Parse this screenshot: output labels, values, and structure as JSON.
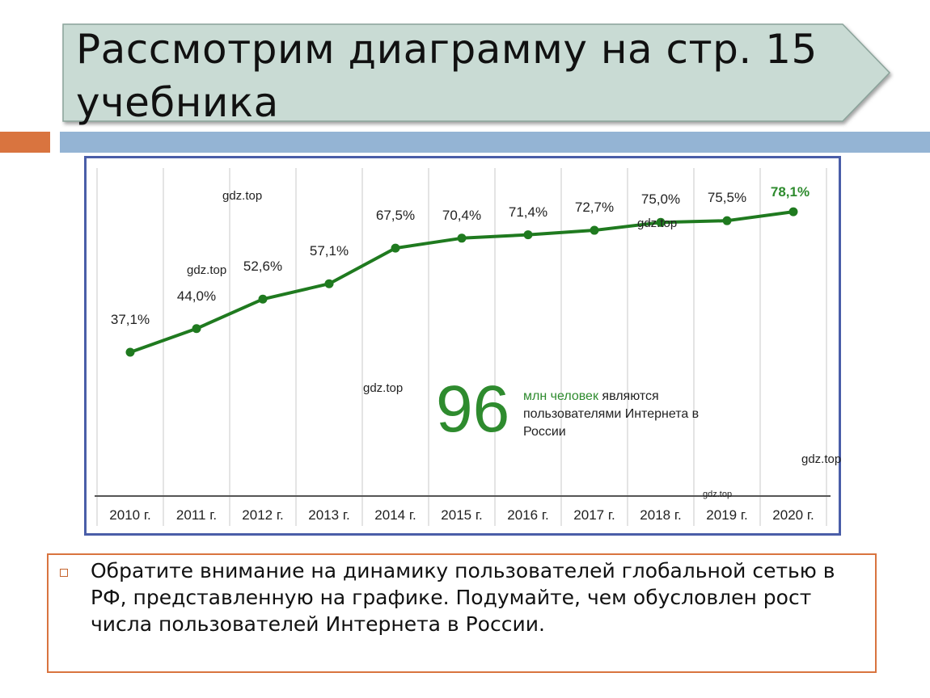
{
  "slide": {
    "title": "Рассмотрим диаграмму на стр. 15 учебника",
    "note": "Обратите внимание на динамику пользователей глобальной сетью в РФ, представленную на графике. Подумайте, чем обусловлен рост числа пользователей Интернета в России.",
    "colors": {
      "banner": "#c9dbd4",
      "accent_orange": "#d9743f",
      "accent_blue": "#94b4d4",
      "frame": "#4a5ea8"
    }
  },
  "chart_data": {
    "type": "line",
    "categories": [
      "2010 г.",
      "2011 г.",
      "2012 г.",
      "2013 г.",
      "2014 г.",
      "2015 г.",
      "2016 г.",
      "2017 г.",
      "2018 г.",
      "2019 г.",
      "2020 г."
    ],
    "series": [
      {
        "values": [
          37.1,
          44.0,
          52.6,
          57.1,
          67.5,
          70.4,
          71.4,
          72.7,
          75.0,
          75.5,
          78.1
        ],
        "labels": [
          "37,1%",
          "44,0%",
          "52,6%",
          "57,1%",
          "67,5%",
          "70,4%",
          "71,4%",
          "72,7%",
          "75,0%",
          "75,5%",
          "78,1%"
        ],
        "color": "#1f7a1f"
      }
    ],
    "highlight_label_color": "#2e8b2e",
    "grid": "vertical",
    "annotation": {
      "number": "96",
      "caption_green": "млн человек",
      "caption_rest": "являются пользователями Интернета в России"
    },
    "watermarks": [
      "gdz.top",
      "gdz.top",
      "gdz.top",
      "gdz.top",
      "gdz.top",
      "gdz.top"
    ]
  }
}
